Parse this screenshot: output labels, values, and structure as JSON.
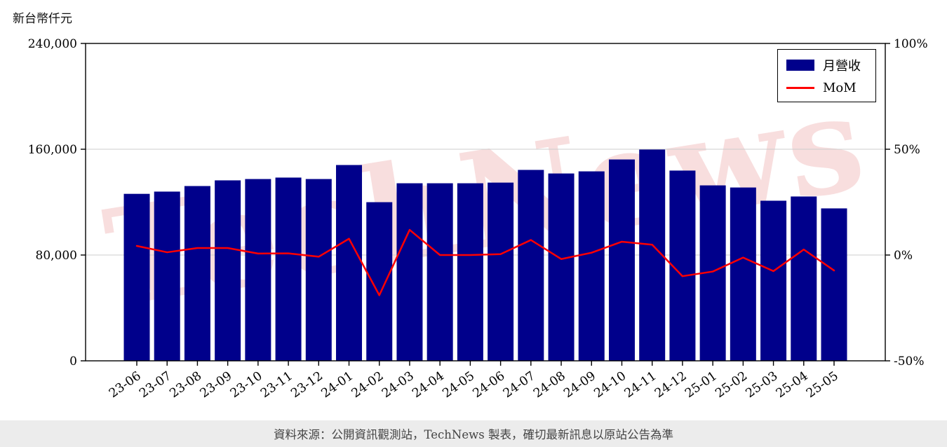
{
  "page": {
    "unit_label": "新台幣仟元",
    "watermark_text": "TechNews",
    "footer_text": "資料來源：公開資訊觀測站，TechNews 製表，確切最新訊息以原站公告為準"
  },
  "legend": {
    "items": [
      {
        "label": "月營收",
        "type": "bar",
        "color": "#00008B"
      },
      {
        "label": "MoM",
        "type": "line",
        "color": "#ff0000"
      }
    ]
  },
  "colors": {
    "bar": "#00008B",
    "line": "#ff0000",
    "grid": "#cccccc",
    "axis": "#000000",
    "watermark": "#e06d6d",
    "footer_bg": "#ececec"
  },
  "chart_data": {
    "type": "bar",
    "title": "",
    "categories": [
      "23-06",
      "23-07",
      "23-08",
      "23-09",
      "23-10",
      "23-11",
      "23-12",
      "24-01",
      "24-02",
      "24-03",
      "24-04",
      "24-05",
      "24-06",
      "24-07",
      "24-08",
      "24-09",
      "24-10",
      "24-11",
      "24-12",
      "25-01",
      "25-02",
      "25-03",
      "25-04",
      "25-05"
    ],
    "series": [
      {
        "name": "月營收",
        "type": "bar",
        "axis": "left",
        "color": "#00008B",
        "values": [
          126000,
          127700,
          131900,
          136200,
          137200,
          138300,
          137200,
          147800,
          119700,
          134000,
          134000,
          134000,
          134500,
          144100,
          141400,
          143000,
          152000,
          159500,
          143600,
          132400,
          130800,
          120800,
          124000,
          115000
        ]
      },
      {
        "name": "MoM",
        "type": "line",
        "axis": "right",
        "color": "#ff0000",
        "values": [
          4.3,
          1.3,
          3.3,
          3.3,
          0.7,
          0.8,
          -0.8,
          7.7,
          -19.0,
          11.9,
          0.0,
          0.0,
          0.4,
          7.1,
          -1.9,
          1.1,
          6.3,
          4.9,
          -10.0,
          -7.8,
          -1.2,
          -7.6,
          2.6,
          -7.3
        ]
      }
    ],
    "left_axis": {
      "label": "新台幣仟元",
      "range": [
        0,
        240000
      ],
      "ticks": [
        0,
        80000,
        160000,
        240000
      ],
      "tick_labels": [
        "0",
        "80,000",
        "160,000",
        "240,000"
      ]
    },
    "right_axis": {
      "range": [
        -50,
        100
      ],
      "ticks": [
        -50,
        0,
        50,
        100
      ],
      "tick_labels": [
        "-50%",
        "0%",
        "50%",
        "100%"
      ]
    },
    "grid": "horizontal",
    "legend_position": "top-right"
  }
}
